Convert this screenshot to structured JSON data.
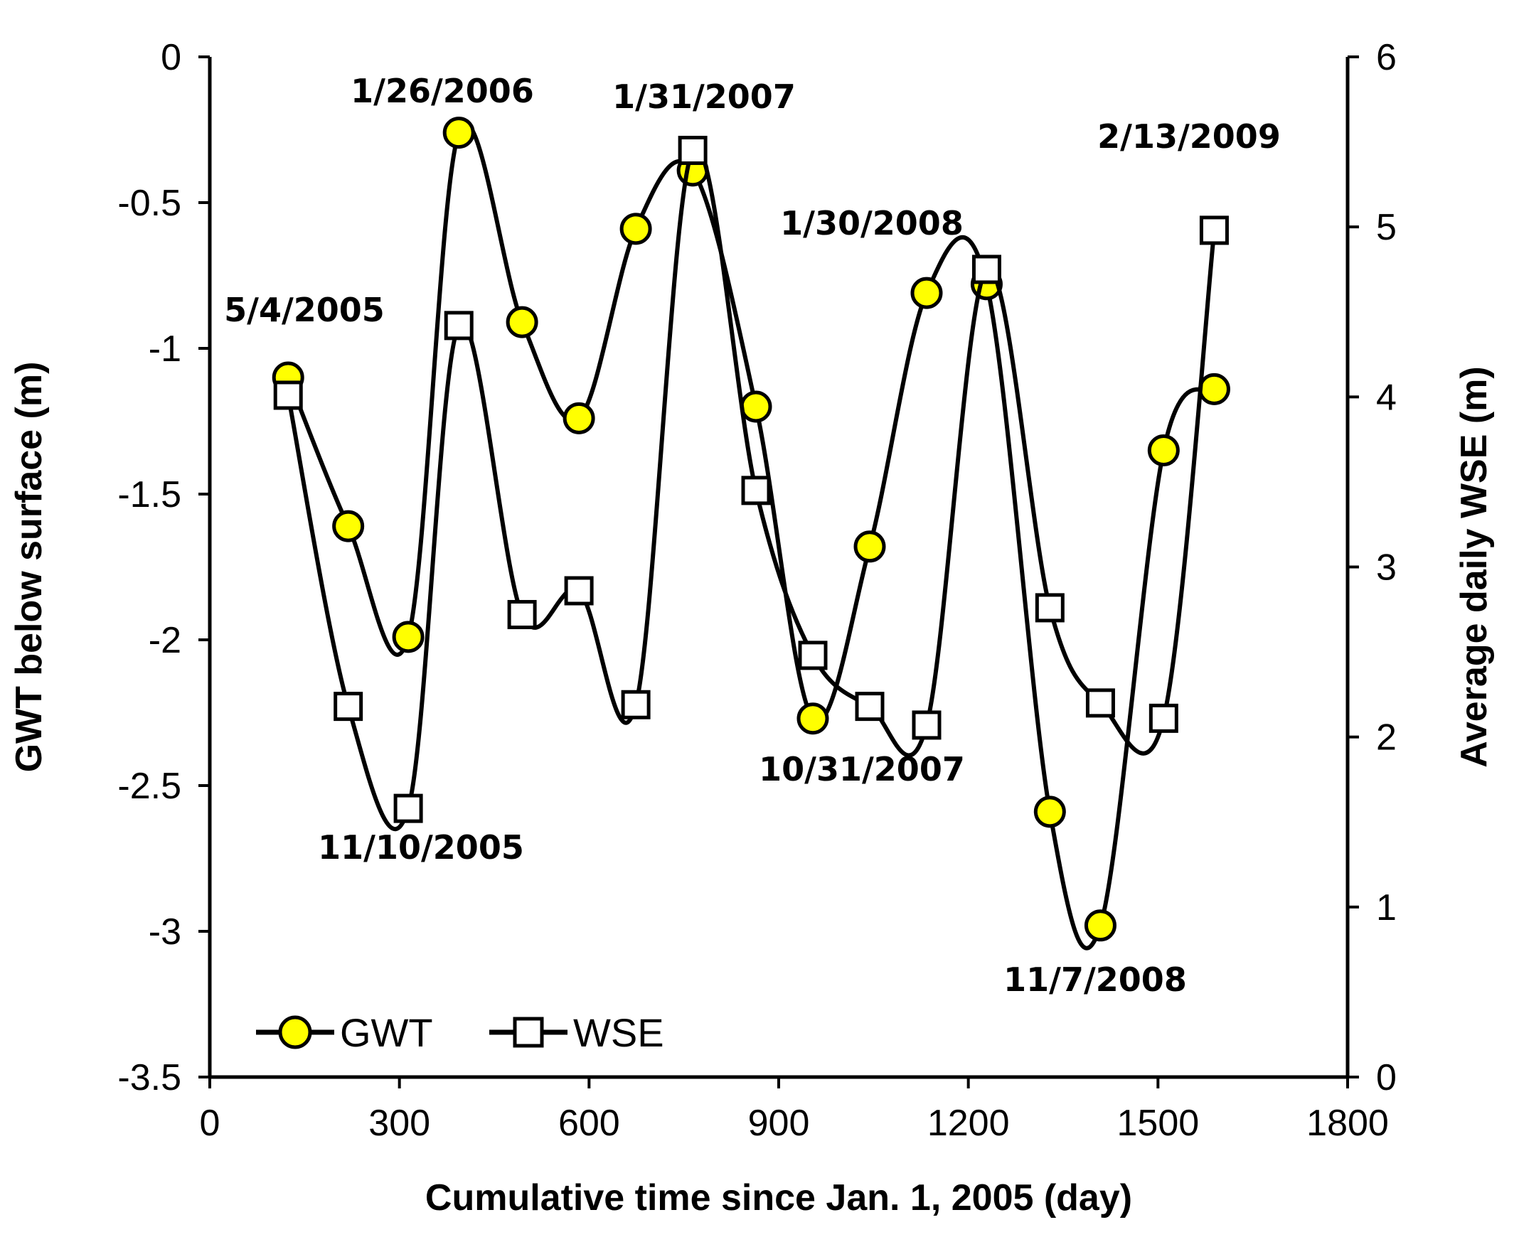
{
  "chart_data": {
    "type": "line",
    "title": "",
    "xlabel": "Cumulative time since Jan. 1, 2005 (day)",
    "ylabel": "GWT below surface (m)",
    "y2label": "Average daily WSE (m)",
    "xlim": [
      0,
      1800
    ],
    "ylim": [
      -3.5,
      0
    ],
    "y2lim": [
      0,
      6
    ],
    "x_ticks": [
      0,
      300,
      600,
      900,
      1200,
      1500,
      1800
    ],
    "y_ticks": [
      0,
      -0.5,
      -1,
      -1.5,
      -2,
      -2.5,
      -3,
      -3.5
    ],
    "y2_ticks": [
      6,
      5,
      4,
      3,
      2,
      1,
      0
    ],
    "x_tick_labels": [
      "0",
      "300",
      "600",
      "900",
      "1200",
      "1500",
      "1800"
    ],
    "y_tick_labels": [
      "0",
      "-0.5",
      "-1",
      "-1.5",
      "-2",
      "-2.5",
      "-3",
      "-3.5"
    ],
    "y2_tick_labels": [
      "6",
      "5",
      "4",
      "3",
      "2",
      "1",
      "0"
    ],
    "grid": false,
    "legend_position": "bottom-left",
    "series": [
      {
        "name": "GWT",
        "axis": "left",
        "marker": "circle",
        "marker_color": "#ffff00",
        "points": [
          [
            124,
            -1.1
          ],
          [
            219,
            -1.61
          ],
          [
            314,
            -1.99
          ],
          [
            394,
            -0.26
          ],
          [
            494,
            -0.91
          ],
          [
            584,
            -1.24
          ],
          [
            674,
            -0.59
          ],
          [
            764,
            -0.39
          ],
          [
            864,
            -1.2
          ],
          [
            954,
            -2.27
          ],
          [
            1044,
            -1.68
          ],
          [
            1134,
            -0.81
          ],
          [
            1229,
            -0.78
          ],
          [
            1329,
            -2.59
          ],
          [
            1409,
            -2.98
          ],
          [
            1509,
            -1.35
          ],
          [
            1589,
            -1.14
          ]
        ]
      },
      {
        "name": "WSE",
        "axis": "right",
        "marker": "square",
        "marker_color": "#ffffff",
        "points": [
          [
            124,
            4.01
          ],
          [
            219,
            2.18
          ],
          [
            314,
            1.58
          ],
          [
            394,
            4.42
          ],
          [
            494,
            2.72
          ],
          [
            584,
            2.86
          ],
          [
            674,
            2.19
          ],
          [
            764,
            5.45
          ],
          [
            864,
            3.45
          ],
          [
            954,
            2.48
          ],
          [
            1044,
            2.18
          ],
          [
            1134,
            2.07
          ],
          [
            1229,
            4.75
          ],
          [
            1329,
            2.76
          ],
          [
            1409,
            2.2
          ],
          [
            1509,
            2.11
          ],
          [
            1589,
            4.98
          ]
        ]
      }
    ],
    "annotations": [
      "5/4/2005",
      "11/10/2005",
      "1/26/2006",
      "1/31/2007",
      "1/30/2008",
      "10/31/2007",
      "11/7/2008",
      "2/13/2009"
    ]
  }
}
